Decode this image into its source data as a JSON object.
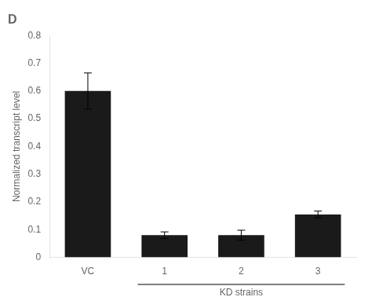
{
  "chart_data": {
    "type": "bar",
    "title": "D",
    "categories": [
      "VC",
      "1",
      "2",
      "3"
    ],
    "values": [
      0.6,
      0.08,
      0.08,
      0.155
    ],
    "errors": [
      0.065,
      0.012,
      0.018,
      0.012
    ],
    "color": "#1a1a1a",
    "ylabel": "Normalized transcript level",
    "xlabel": "KD strains",
    "ylim": [
      0,
      0.8
    ],
    "yticks": [
      0,
      0.1,
      0.2,
      0.3,
      0.4,
      0.5,
      0.6,
      0.7,
      0.8
    ],
    "grid": false
  }
}
